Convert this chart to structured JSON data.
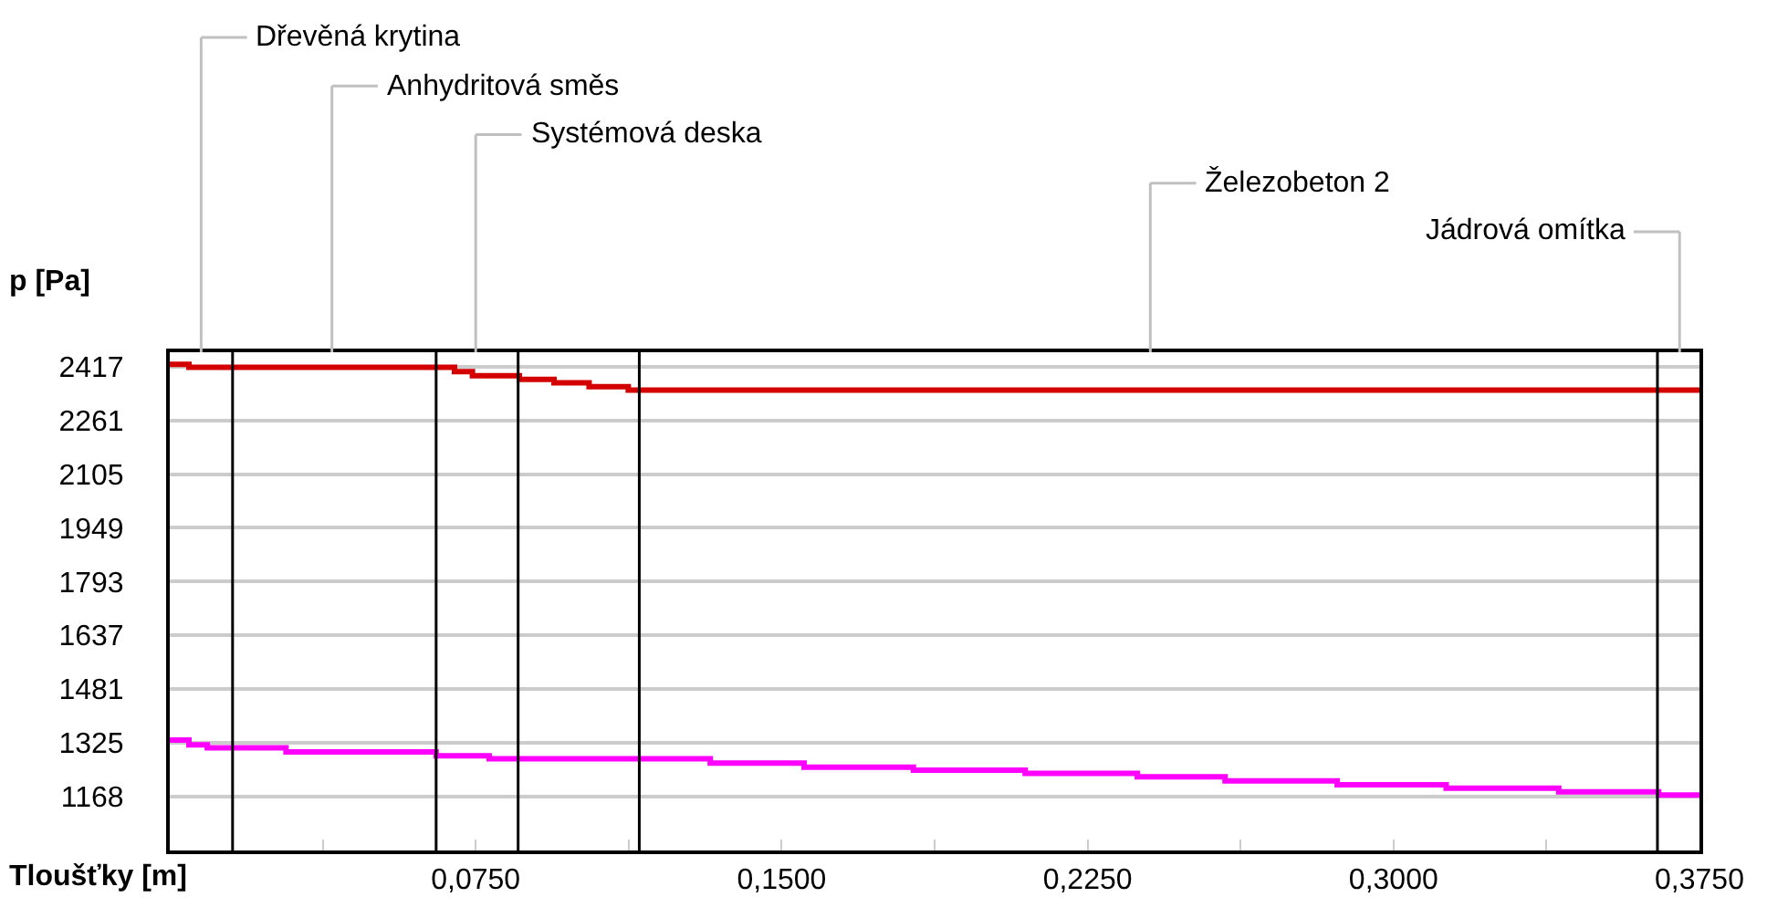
{
  "chart_data": {
    "type": "step",
    "xlabel": "Tloušťky [m]",
    "ylabel": "p [Pa]",
    "xlim": [
      0,
      0.375
    ],
    "ylim": [
      1012,
      2459
    ],
    "xticks": [
      {
        "value": 0.0375,
        "label": null
      },
      {
        "value": 0.075,
        "label": "0,0750"
      },
      {
        "value": 0.1125,
        "label": null
      },
      {
        "value": 0.15,
        "label": "0,1500"
      },
      {
        "value": 0.1875,
        "label": null
      },
      {
        "value": 0.225,
        "label": "0,2250"
      },
      {
        "value": 0.2625,
        "label": null
      },
      {
        "value": 0.3,
        "label": "0,3000"
      },
      {
        "value": 0.3375,
        "label": null
      },
      {
        "value": 0.375,
        "label": "0,3750"
      }
    ],
    "yticks": [
      1168,
      1325,
      1481,
      1637,
      1793,
      1949,
      2105,
      2261,
      2417
    ],
    "grid": "y",
    "marker": "none",
    "line_style": "solid",
    "series": [
      {
        "color": "#d40000",
        "x": [
          0,
          0.0047,
          0.0653,
          0.0698,
          0.0742,
          0.0857,
          0.0942,
          0.1028,
          0.1124,
          0.375
        ],
        "values": [
          2424,
          2415,
          2415,
          2403,
          2391,
          2380,
          2370,
          2359,
          2349,
          2349
        ]
      },
      {
        "color": "#ff00ff",
        "x": [
          0,
          0.0047,
          0.0092,
          0.0285,
          0.0653,
          0.0783,
          0.1325,
          0.1555,
          0.1823,
          0.2097,
          0.2372,
          0.2587,
          0.2862,
          0.3129,
          0.3405,
          0.365,
          0.375
        ],
        "values": [
          1333,
          1319,
          1310,
          1298,
          1287,
          1278,
          1266,
          1254,
          1245,
          1236,
          1226,
          1214,
          1203,
          1193,
          1182,
          1173,
          1173
        ]
      }
    ],
    "ref_lines": [
      {
        "axis": "x",
        "value": 0.0154,
        "color": "#000000"
      },
      {
        "axis": "x",
        "value": 0.0653,
        "color": "#000000"
      },
      {
        "axis": "x",
        "value": 0.0854,
        "color": "#000000"
      },
      {
        "axis": "x",
        "value": 0.1151,
        "color": "#000000"
      },
      {
        "axis": "x",
        "value": 0.3647,
        "color": "#000000"
      }
    ],
    "annotations": [
      "Dřevěná krytina",
      "Anhydritová směs",
      "Systémová deska",
      "Železobeton 2",
      "Jádrová omítka"
    ]
  }
}
